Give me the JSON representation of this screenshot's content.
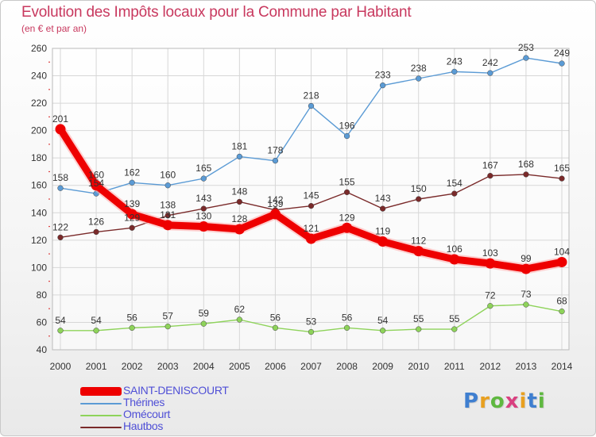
{
  "chart_data": {
    "type": "line",
    "title": "Evolution des Impôts locaux pour la Commune par Habitant",
    "subtitle": "(en € et par an)",
    "x": [
      "2000",
      "2001",
      "2002",
      "2003",
      "2004",
      "2005",
      "2006",
      "2007",
      "2008",
      "2009",
      "2010",
      "2011",
      "2012",
      "2013",
      "2014"
    ],
    "ylim": [
      40,
      260
    ],
    "yticks": [
      40,
      60,
      80,
      100,
      120,
      140,
      160,
      180,
      200,
      220,
      240,
      260
    ],
    "grid": true,
    "legend_position": "bottom-left",
    "series": [
      {
        "name": "SAINT-DENISCOURT",
        "color": "#ee0000",
        "values": [
          201,
          160,
          139,
          131,
          130,
          128,
          139,
          121,
          129,
          119,
          112,
          106,
          103,
          99,
          104
        ]
      },
      {
        "name": "Thérines",
        "color": "#5b9bd5",
        "values": [
          158,
          154,
          162,
          160,
          165,
          181,
          178,
          218,
          196,
          233,
          238,
          243,
          242,
          253,
          249
        ]
      },
      {
        "name": "Omécourt",
        "color": "#8ed35a",
        "values": [
          54,
          54,
          56,
          57,
          59,
          62,
          56,
          53,
          56,
          54,
          55,
          55,
          72,
          73,
          68
        ]
      },
      {
        "name": "Hautbos",
        "color": "#7a2a2a",
        "values": [
          122,
          126,
          129,
          138,
          143,
          148,
          142,
          145,
          155,
          143,
          150,
          154,
          167,
          168,
          165
        ]
      }
    ]
  },
  "logo": {
    "letters": [
      "P",
      "r",
      "o",
      "x",
      "i",
      "t",
      "i"
    ],
    "colors": [
      "#3f7fd0",
      "#e8a020",
      "#5fb840",
      "#d94080",
      "#e8a020",
      "#3f7fd0",
      "#5fb840"
    ]
  }
}
